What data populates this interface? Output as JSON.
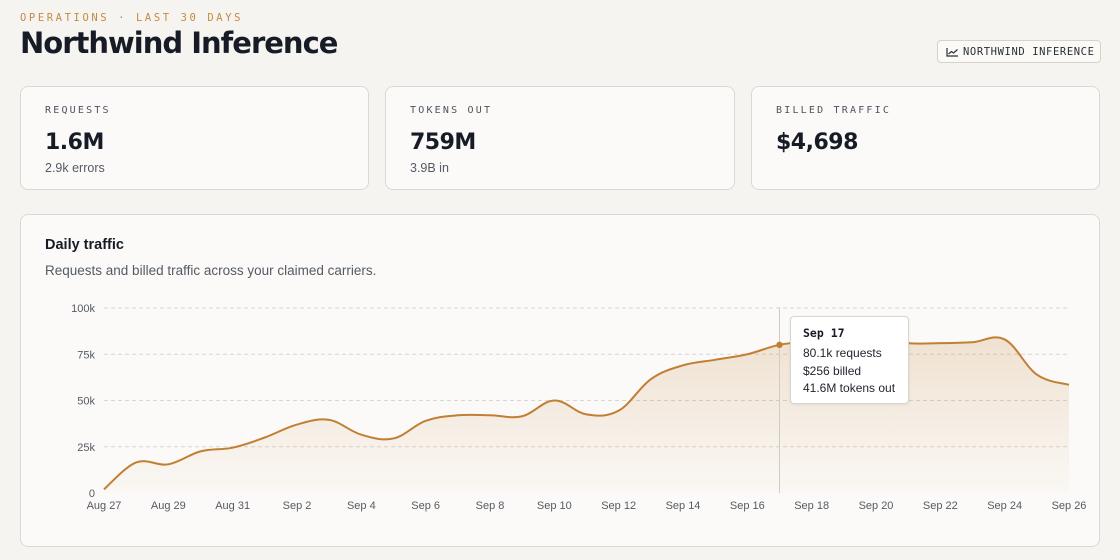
{
  "header": {
    "eyebrow": "OPERATIONS · LAST 30 DAYS",
    "title": "Northwind Inference",
    "tag_label": "NORTHWIND INFERENCE",
    "tag_icon": "chart-icon"
  },
  "stats": [
    {
      "label": "REQUESTS",
      "value": "1.6M",
      "sub": "2.9k errors"
    },
    {
      "label": "TOKENS OUT",
      "value": "759M",
      "sub": "3.9B in"
    },
    {
      "label": "BILLED TRAFFIC",
      "value": "$4,698",
      "sub": ""
    }
  ],
  "panel": {
    "title": "Daily traffic",
    "subtitle": "Requests and billed traffic across your claimed carriers."
  },
  "tooltip": {
    "date": "Sep 17",
    "requests": "80.1k requests",
    "billed": "$256 billed",
    "tokens": "41.6M tokens out"
  },
  "colors": {
    "accent": "#c27f33",
    "background": "#f5f4f0",
    "card": "#fbfaf8"
  },
  "chart_data": {
    "type": "area",
    "x": [
      "Aug 27",
      "Aug 28",
      "Aug 29",
      "Aug 30",
      "Aug 31",
      "Sep 1",
      "Sep 2",
      "Sep 3",
      "Sep 4",
      "Sep 5",
      "Sep 6",
      "Sep 7",
      "Sep 8",
      "Sep 9",
      "Sep 10",
      "Sep 11",
      "Sep 12",
      "Sep 13",
      "Sep 14",
      "Sep 15",
      "Sep 16",
      "Sep 17",
      "Sep 18",
      "Sep 19",
      "Sep 20",
      "Sep 21",
      "Sep 22",
      "Sep 23",
      "Sep 24",
      "Sep 25",
      "Sep 26"
    ],
    "series": [
      {
        "values": [
          2000,
          16500,
          15500,
          22500,
          24500,
          30000,
          37000,
          39500,
          31500,
          29500,
          39000,
          42000,
          42000,
          41500,
          50000,
          42500,
          44500,
          61500,
          69000,
          72000,
          75000,
          80100,
          82000,
          84000,
          84000,
          81000,
          81000,
          81500,
          83000,
          64000,
          58500
        ]
      }
    ],
    "ylim": [
      0,
      100000
    ],
    "yticks": [
      0,
      25000,
      50000,
      75000,
      100000
    ],
    "ytick_labels": [
      "0",
      "25k",
      "50k",
      "75k",
      "100k"
    ],
    "xtick_labels": [
      "Aug 27",
      "Aug 29",
      "Aug 31",
      "Sep 2",
      "Sep 4",
      "Sep 6",
      "Sep 8",
      "Sep 10",
      "Sep 12",
      "Sep 14",
      "Sep 16",
      "Sep 18",
      "Sep 20",
      "Sep 22",
      "Sep 24",
      "Sep 26"
    ],
    "highlight": "Sep 17",
    "grid": true,
    "xlabel": "",
    "ylabel": ""
  }
}
